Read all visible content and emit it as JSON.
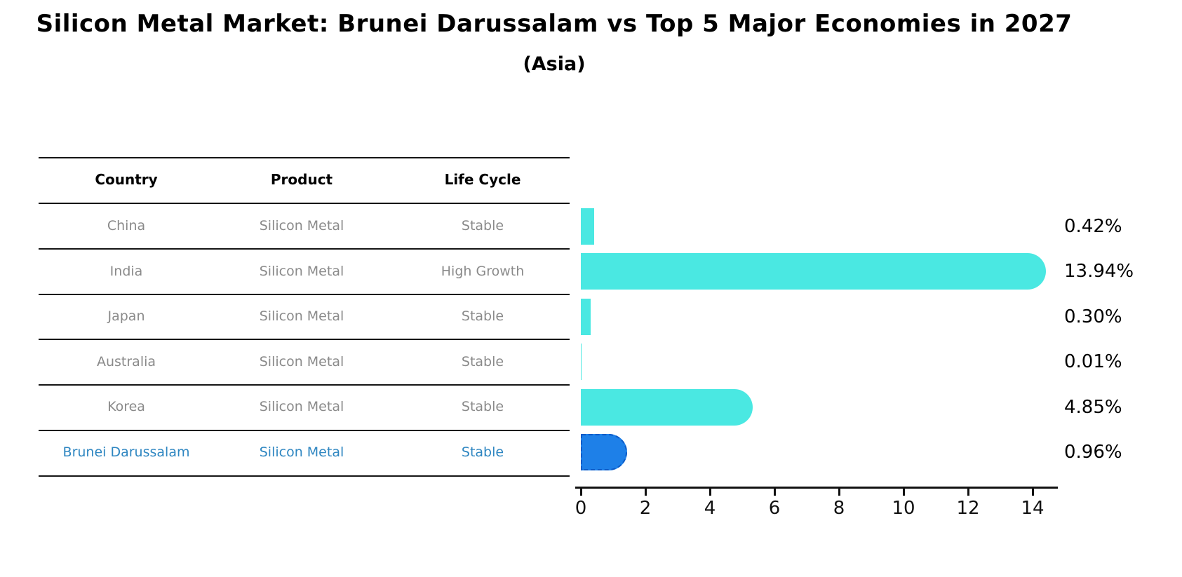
{
  "title": "Silicon Metal Market: Brunei Darussalam vs Top 5 Major Economies in 2027",
  "subtitle": "(Asia)",
  "table": {
    "headers": [
      "Country",
      "Product",
      "Life Cycle"
    ],
    "rows": [
      {
        "country": "China",
        "product": "Silicon Metal",
        "life_cycle": "Stable"
      },
      {
        "country": "India",
        "product": "Silicon Metal",
        "life_cycle": "High Growth"
      },
      {
        "country": "Japan",
        "product": "Silicon Metal",
        "life_cycle": "Stable"
      },
      {
        "country": "Australia",
        "product": "Silicon Metal",
        "life_cycle": "Stable"
      },
      {
        "country": "Korea",
        "product": "Silicon Metal",
        "life_cycle": "Stable"
      },
      {
        "country": "Brunei Darussalam",
        "product": "Silicon Metal",
        "life_cycle": "Stable"
      }
    ]
  },
  "chart_data": {
    "type": "bar",
    "orientation": "horizontal",
    "title": "Silicon Metal Market: Brunei Darussalam vs Top 5 Major Economies in 2027 (Asia)",
    "categories": [
      "China",
      "India",
      "Japan",
      "Australia",
      "Korea",
      "Brunei Darussalam"
    ],
    "values": [
      0.42,
      13.94,
      0.3,
      0.01,
      4.85,
      0.96
    ],
    "value_labels": [
      "0.42%",
      "13.94%",
      "0.30%",
      "0.01%",
      "4.85%",
      "0.96%"
    ],
    "unit": "%",
    "xticks": [
      0,
      2,
      4,
      6,
      8,
      10,
      12,
      14
    ],
    "xlim": [
      0,
      14.75
    ],
    "grid": false,
    "legend": "none",
    "highlight_index": 5
  },
  "colors": {
    "bar_default": "#4AE8E2",
    "bar_highlight": "#1E80E8",
    "bar_highlight_border": "#0D5BC8",
    "table_text_gray": "#8a8a8a",
    "highlight_text_blue": "#2E86C1",
    "axis_black": "#111111"
  }
}
